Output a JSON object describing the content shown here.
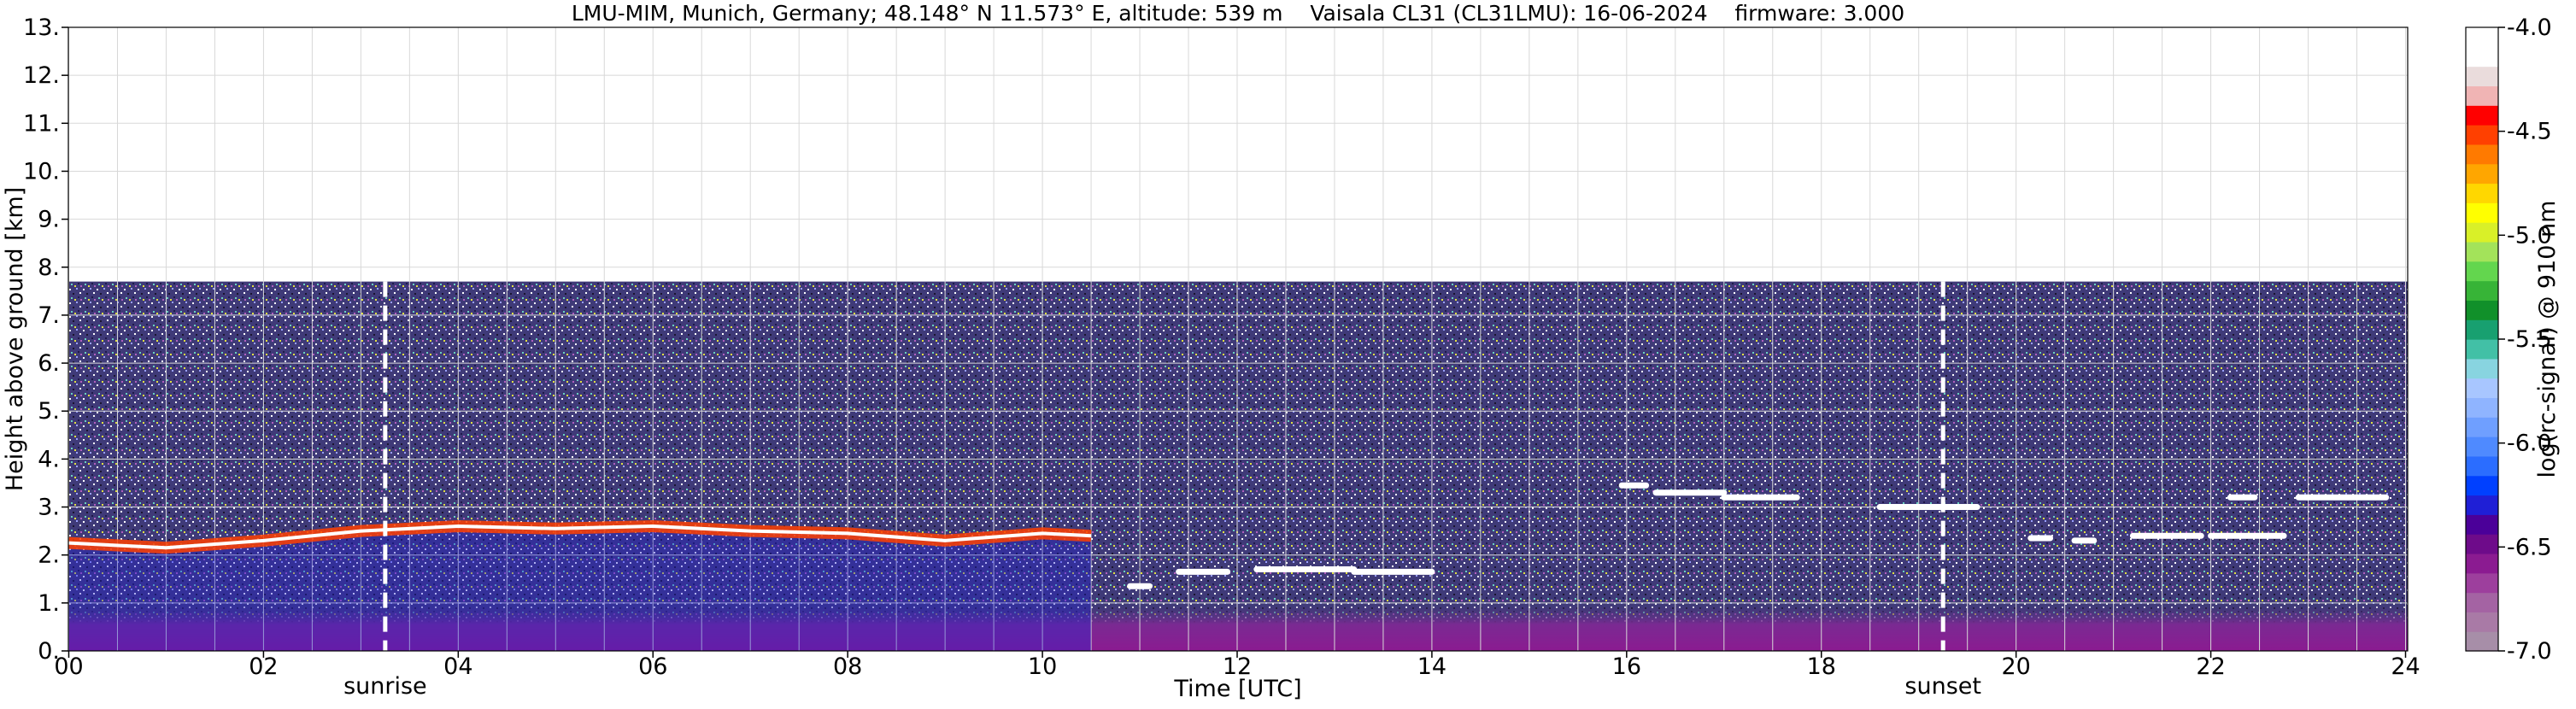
{
  "chart_data": {
    "type": "heatmap",
    "title": "LMU-MIM, Munich, Germany; 48.148° N 11.573° E, altitude: 539 m    Vaisala CL31 (CL31LMU): 16-06-2024    firmware: 3.000",
    "xlabel": "Time [UTC]",
    "ylabel": "Height above ground [km]",
    "xlim": [
      0,
      24
    ],
    "ylim": [
      0,
      13
    ],
    "x_ticks": [
      0,
      2,
      4,
      6,
      8,
      10,
      12,
      14,
      16,
      18,
      20,
      22,
      24
    ],
    "x_tick_labels": [
      "00",
      "02",
      "04",
      "06",
      "08",
      "10",
      "12",
      "14",
      "16",
      "18",
      "20",
      "22",
      "24"
    ],
    "y_ticks": [
      0,
      1,
      2,
      3,
      4,
      5,
      6,
      7,
      8,
      9,
      10,
      11,
      12,
      13
    ],
    "y_tick_labels": [
      "0.",
      "1.",
      "2.",
      "3.",
      "4.",
      "5.",
      "6.",
      "7.",
      "8.",
      "9.",
      "10.",
      "11.",
      "12.",
      "13."
    ],
    "grid": true,
    "data_top_km": 7.7,
    "markers": [
      {
        "label": "sunrise",
        "x": 3.25
      },
      {
        "label": "sunset",
        "x": 19.25
      }
    ],
    "layer_height_km": [
      {
        "x": 0.0,
        "y": 2.25
      },
      {
        "x": 1.0,
        "y": 2.15
      },
      {
        "x": 2.0,
        "y": 2.3
      },
      {
        "x": 3.0,
        "y": 2.5
      },
      {
        "x": 4.0,
        "y": 2.6
      },
      {
        "x": 5.0,
        "y": 2.55
      },
      {
        "x": 6.0,
        "y": 2.6
      },
      {
        "x": 7.0,
        "y": 2.5
      },
      {
        "x": 8.0,
        "y": 2.45
      },
      {
        "x": 9.0,
        "y": 2.3
      },
      {
        "x": 10.0,
        "y": 2.45
      },
      {
        "x": 10.5,
        "y": 2.4
      }
    ],
    "cloud_segments_km": [
      {
        "x_start": 10.9,
        "x_end": 11.1,
        "y": 1.35
      },
      {
        "x_start": 11.4,
        "x_end": 11.9,
        "y": 1.65
      },
      {
        "x_start": 12.2,
        "x_end": 13.2,
        "y": 1.7
      },
      {
        "x_start": 13.2,
        "x_end": 14.0,
        "y": 1.65
      },
      {
        "x_start": 15.95,
        "x_end": 16.2,
        "y": 3.45
      },
      {
        "x_start": 16.3,
        "x_end": 17.0,
        "y": 3.3
      },
      {
        "x_start": 17.0,
        "x_end": 17.75,
        "y": 3.2
      },
      {
        "x_start": 18.6,
        "x_end": 19.6,
        "y": 3.0
      },
      {
        "x_start": 20.15,
        "x_end": 20.35,
        "y": 2.35
      },
      {
        "x_start": 20.6,
        "x_end": 20.8,
        "y": 2.3
      },
      {
        "x_start": 21.2,
        "x_end": 21.9,
        "y": 2.4
      },
      {
        "x_start": 22.0,
        "x_end": 22.75,
        "y": 2.4
      },
      {
        "x_start": 22.2,
        "x_end": 22.45,
        "y": 3.2
      },
      {
        "x_start": 22.9,
        "x_end": 23.8,
        "y": 3.2
      }
    ],
    "colorbar": {
      "label": "log(rc-signal) @ 910 nm",
      "min": -7.0,
      "max": -4.0,
      "ticks": [
        -4.0,
        -4.5,
        -5.0,
        -5.5,
        -6.0,
        -6.5,
        -7.0
      ],
      "tick_labels": [
        "-4.0",
        "-4.5",
        "-5.0",
        "-5.5",
        "-6.0",
        "-6.5",
        "-7.0"
      ],
      "colors": [
        "#a78ea8",
        "#a97aa6",
        "#a463a3",
        "#9d3f9d",
        "#8b1b91",
        "#6e0b8a",
        "#4b0099",
        "#1f1fd6",
        "#0040ff",
        "#2b6dff",
        "#4f8aff",
        "#6f9fff",
        "#8fb4ff",
        "#a8c6ff",
        "#88d4e0",
        "#42c0a6",
        "#18a070",
        "#11902a",
        "#37b437",
        "#63d64e",
        "#a3e35a",
        "#d9f028",
        "#ffff00",
        "#ffd700",
        "#ffa600",
        "#ff7a00",
        "#ff4000",
        "#ff0000",
        "#f0b4b4",
        "#eadcdc",
        "#ffffff",
        "#ffffff"
      ]
    }
  }
}
